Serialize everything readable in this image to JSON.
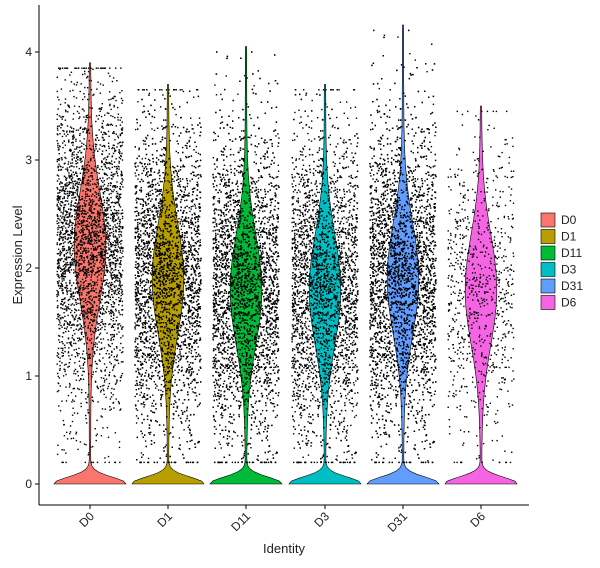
{
  "chart_data": {
    "type": "violin",
    "xlabel": "Identity",
    "ylabel": "Expression Level",
    "ylim": [
      -0.25,
      4.5
    ],
    "yticks": [
      "0",
      "1",
      "2",
      "3",
      "4"
    ],
    "categories": [
      "D0",
      "D1",
      "D11",
      "D3",
      "D31",
      "D6"
    ],
    "legend": {
      "position": "right",
      "entries": [
        {
          "label": "D0",
          "color": "#F8766D"
        },
        {
          "label": "D1",
          "color": "#B79F00"
        },
        {
          "label": "D11",
          "color": "#00BA38"
        },
        {
          "label": "D3",
          "color": "#00BFC4"
        },
        {
          "label": "D31",
          "color": "#619CFF"
        },
        {
          "label": "D6",
          "color": "#F564E3"
        }
      ]
    },
    "series": [
      {
        "name": "D0",
        "max": 3.9,
        "mode": 2.2,
        "zero_peak": true,
        "point_count": 3000
      },
      {
        "name": "D1",
        "max": 3.7,
        "mode": 1.9,
        "zero_peak": true,
        "point_count": 4200
      },
      {
        "name": "D11",
        "max": 4.05,
        "mode": 1.8,
        "zero_peak": true,
        "point_count": 4500
      },
      {
        "name": "D3",
        "max": 3.7,
        "mode": 1.8,
        "zero_peak": true,
        "point_count": 3500
      },
      {
        "name": "D31",
        "max": 4.25,
        "mode": 1.9,
        "zero_peak": true,
        "point_count": 4800
      },
      {
        "name": "D6",
        "max": 3.5,
        "mode": 1.8,
        "zero_peak": true,
        "point_count": 800
      }
    ],
    "grid": false,
    "jitter_points": true
  }
}
